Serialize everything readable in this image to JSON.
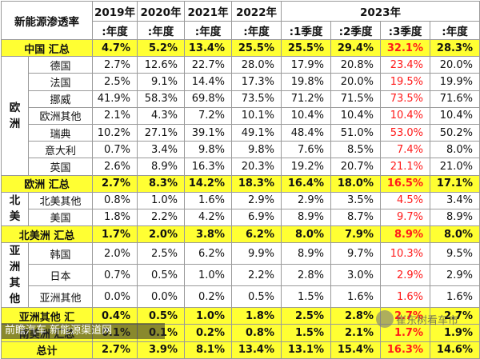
{
  "header": {
    "corner": "新能源渗透率",
    "years": [
      "2019年",
      "2020年",
      "2021年",
      "2022年"
    ],
    "year2023": "2023年",
    "sub": [
      ":年度",
      ":年度",
      ":年度",
      ":年度",
      ":1季度",
      ":2季度",
      ":3季度",
      ":年度"
    ]
  },
  "rows": [
    {
      "type": "sum",
      "label": "中国 汇总",
      "values": [
        "4.7%",
        "5.2%",
        "13.4%",
        "25.5%",
        "25.5%",
        "29.4%",
        "32.1%",
        "28.3%"
      ],
      "red": [
        6
      ]
    },
    {
      "type": "country",
      "region": "欧洲",
      "label": "德国",
      "values": [
        "2.7%",
        "12.6%",
        "22.7%",
        "28.0%",
        "17.9%",
        "20.8%",
        "23.4%",
        "20.0%"
      ],
      "red": [
        6
      ]
    },
    {
      "type": "country",
      "label": "法国",
      "values": [
        "2.5%",
        "9.1%",
        "14.4%",
        "17.3%",
        "19.8%",
        "20.0%",
        "19.5%",
        "19.9%"
      ],
      "red": [
        6
      ]
    },
    {
      "type": "country",
      "label": "挪威",
      "values": [
        "41.9%",
        "58.3%",
        "69.8%",
        "73.5%",
        "71.2%",
        "71.5%",
        "73.5%",
        "71.6%"
      ],
      "red": [
        6
      ]
    },
    {
      "type": "country",
      "label": "欧洲其他",
      "values": [
        "2.1%",
        "4.3%",
        "7.2%",
        "10.1%",
        "10.4%",
        "10.4%",
        "10.4%",
        "10.4%"
      ],
      "red": [
        6
      ]
    },
    {
      "type": "country",
      "label": "瑞典",
      "values": [
        "10.2%",
        "27.1%",
        "39.1%",
        "49.1%",
        "48.4%",
        "51.0%",
        "53.0%",
        "50.2%"
      ],
      "red": [
        6
      ]
    },
    {
      "type": "country",
      "label": "意大利",
      "values": [
        "0.7%",
        "3.4%",
        "9.8%",
        "9.8%",
        "7.6%",
        "8.5%",
        "7.4%",
        "8.0%"
      ],
      "red": [
        6
      ]
    },
    {
      "type": "country",
      "label": "英国",
      "values": [
        "2.6%",
        "8.9%",
        "16.3%",
        "20.3%",
        "19.2%",
        "20.7%",
        "21.1%",
        "21.0%"
      ],
      "red": [
        6
      ]
    },
    {
      "type": "sum",
      "label": "欧洲 汇总",
      "values": [
        "2.7%",
        "8.3%",
        "14.2%",
        "18.3%",
        "16.4%",
        "18.0%",
        "16.5%",
        "17.1%"
      ],
      "red": [
        6
      ]
    },
    {
      "type": "country",
      "region": "北美",
      "label": "北美其他",
      "values": [
        "0.8%",
        "1.0%",
        "1.6%",
        "2.9%",
        "2.9%",
        "3.5%",
        "4.5%",
        "3.4%"
      ],
      "red": [
        6
      ]
    },
    {
      "type": "country",
      "label": "美国",
      "values": [
        "1.8%",
        "2.2%",
        "4.2%",
        "6.9%",
        "8.9%",
        "8.7%",
        "9.7%",
        "8.9%"
      ],
      "red": [
        6
      ]
    },
    {
      "type": "sum",
      "label": "北美洲 汇总",
      "values": [
        "1.7%",
        "2.0%",
        "3.8%",
        "6.2%",
        "8.0%",
        "7.9%",
        "8.9%",
        "8.0%"
      ],
      "red": [
        6
      ]
    },
    {
      "type": "country",
      "region": "亚洲其他",
      "label": "韩国",
      "values": [
        "2.0%",
        "2.5%",
        "6.2%",
        "9.9%",
        "8.9%",
        "9.7%",
        "10.3%",
        "9.5%"
      ],
      "red": [
        6
      ]
    },
    {
      "type": "country",
      "label": "日本",
      "values": [
        "0.7%",
        "0.5%",
        "1.0%",
        "2.2%",
        "2.8%",
        "3.0%",
        "2.9%",
        "2.9%"
      ],
      "red": [
        6
      ]
    },
    {
      "type": "country",
      "label": "亚洲其他",
      "values": [
        "0.0%",
        "0.0%",
        "0.2%",
        "0.5%",
        "1.5%",
        "1.6%",
        "1.6%",
        "1.6%"
      ],
      "red": [
        6
      ]
    },
    {
      "type": "sum",
      "label": "亚洲其他 汇",
      "values": [
        "0.4%",
        "0.5%",
        "1.0%",
        "1.8%",
        "2.5%",
        "2.8%",
        "2.7%",
        "2.7%"
      ],
      "red": [
        6
      ]
    },
    {
      "type": "sum",
      "label": "南美洲 汇总",
      "values": [
        "0.1%",
        "0.1%",
        "0.2%",
        "0.8%",
        "1.5%",
        "2.1%",
        "1.7%",
        "1.9%"
      ],
      "red": [
        6
      ]
    },
    {
      "type": "total",
      "label": "总计",
      "values": [
        "2.7%",
        "3.9%",
        "8.1%",
        "13.4%",
        "13.1%",
        "15.4%",
        "16.3%",
        "14.6%"
      ],
      "red": [
        6
      ]
    }
  ],
  "watermark": {
    "text": "前瞻汽车 新能源渠道网",
    "account": "崔东树看车市"
  }
}
